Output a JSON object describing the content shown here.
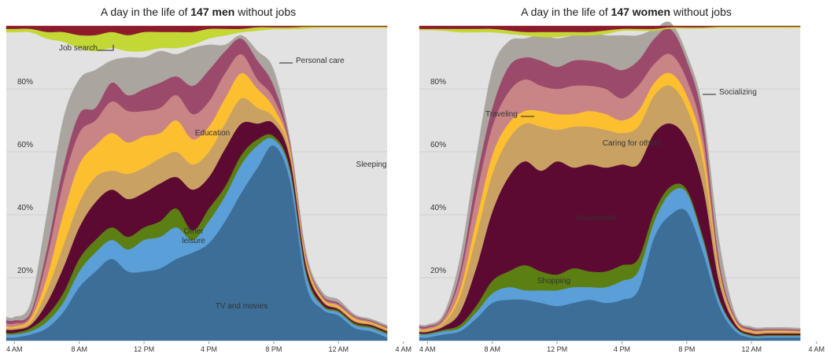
{
  "chart_data": [
    {
      "type": "area",
      "stacked": true,
      "title": {
        "pre": "A day in the life of ",
        "bold": "147 men",
        "post": " without jobs"
      },
      "x": [
        3.5,
        4,
        5,
        6,
        7,
        8,
        9,
        10,
        11,
        12,
        13,
        14,
        15,
        16,
        17,
        18,
        19,
        20,
        21,
        22,
        23,
        24,
        25,
        26,
        27
      ],
      "xlim": [
        3.5,
        28
      ],
      "xticks": [
        {
          "value": 4,
          "label": "4 AM"
        },
        {
          "value": 8,
          "label": "8 AM"
        },
        {
          "value": 12,
          "label": "12 PM"
        },
        {
          "value": 16,
          "label": "4 PM"
        },
        {
          "value": 20,
          "label": "8 PM"
        },
        {
          "value": 24,
          "label": "12 AM"
        },
        {
          "value": 28,
          "label": "4 AM"
        }
      ],
      "ylim": [
        0,
        100
      ],
      "yticks": [
        {
          "value": 20,
          "label": "20%"
        },
        {
          "value": 40,
          "label": "40%"
        },
        {
          "value": 60,
          "label": "60%"
        },
        {
          "value": 80,
          "label": "80%"
        }
      ],
      "grid": true,
      "background": "#e2e2e2",
      "annotations": [
        "Sleeping"
      ],
      "series": [
        {
          "name": "TV and movies",
          "color": "#3c6e98",
          "values": [
            1,
            1,
            2,
            4,
            9,
            17,
            22,
            26,
            22,
            22,
            23,
            26,
            28,
            31,
            38,
            47,
            55,
            62,
            51,
            18,
            10,
            8,
            4,
            3,
            1
          ]
        },
        {
          "name": "Other leisure",
          "color": "#5a9fd8",
          "values": [
            1,
            1,
            1,
            2,
            3,
            5,
            6,
            6,
            7,
            10,
            10,
            10,
            4,
            7,
            8,
            9,
            7,
            2,
            3,
            3,
            1,
            1,
            1,
            1,
            1
          ]
        },
        {
          "color": "#5b7f12",
          "values": [
            0.5,
            0.5,
            1,
            2,
            3,
            4,
            4,
            4,
            4,
            4,
            5,
            6,
            3,
            4,
            3,
            3,
            2,
            1,
            1,
            1,
            0.5,
            0.5,
            0.5,
            0.5,
            0.5
          ]
        },
        {
          "color": "#5c0a32",
          "values": [
            1,
            1,
            1,
            4,
            8,
            10,
            12,
            12,
            12,
            11,
            12,
            10,
            13,
            10,
            12,
            10,
            5,
            4,
            3,
            2,
            1,
            0.5,
            0.5,
            0.5,
            0.5
          ]
        },
        {
          "color": "#c9a263",
          "values": [
            0.5,
            0.5,
            1,
            4,
            7,
            8,
            8,
            6,
            8,
            8,
            8,
            8,
            8,
            8,
            8,
            8,
            5,
            2,
            2,
            1,
            0.5,
            0.5,
            0.5,
            0.5,
            0.5
          ]
        },
        {
          "name": "Education",
          "color": "#fcbf30",
          "values": [
            0.5,
            0.5,
            1,
            4,
            10,
            12,
            10,
            12,
            10,
            10,
            8,
            10,
            8,
            8,
            8,
            8,
            6,
            3,
            1,
            1,
            0.5,
            0.5,
            0.5,
            0.3,
            0.3
          ]
        },
        {
          "color": "#c98585",
          "values": [
            1,
            1,
            1,
            6,
            10,
            10,
            8,
            10,
            10,
            8,
            8,
            8,
            8,
            8,
            8,
            6,
            3,
            3,
            1,
            0.5,
            0.5,
            0.5,
            0.5,
            0.3,
            0.3
          ]
        },
        {
          "color": "#9c4a6c",
          "values": [
            1,
            1,
            1,
            3,
            5,
            6,
            4,
            6,
            5,
            7,
            8,
            6,
            9,
            10,
            7,
            5,
            6,
            4,
            1,
            0.5,
            0.5,
            0.5,
            0.3,
            0.3,
            0.3
          ]
        },
        {
          "name": "Personal care",
          "color": "#aaa59f",
          "values": [
            1,
            1,
            3,
            11,
            15,
            11,
            12,
            7,
            12,
            10,
            10,
            7,
            12,
            8,
            2,
            1,
            3,
            5,
            1,
            1,
            1,
            1,
            0.5,
            0.5,
            0.5
          ]
        },
        {
          "from": "top",
          "color": "#8c1c2c",
          "values": [
            1,
            1,
            1,
            2,
            2,
            3,
            3,
            2,
            3,
            2,
            2,
            2,
            2,
            1,
            1,
            1,
            0.5,
            0.5,
            0.5,
            0.3,
            0.3,
            0.3,
            0.3,
            0.3,
            0.3
          ]
        },
        {
          "from": "top",
          "name": "Job search",
          "color": "#c3d735",
          "values": [
            1,
            1,
            1,
            2,
            3,
            4,
            5,
            5,
            5,
            6,
            5,
            5,
            4,
            3,
            2,
            1,
            1,
            0.5,
            0.5,
            0.5,
            0.3,
            0.3,
            0.3,
            0.3,
            0.3
          ]
        }
      ]
    },
    {
      "type": "area",
      "stacked": true,
      "title": {
        "pre": "A day in the life of ",
        "bold": "147 women",
        "post": " without jobs"
      },
      "x": [
        3.5,
        4,
        5,
        6,
        7,
        8,
        9,
        10,
        11,
        12,
        13,
        14,
        15,
        16,
        17,
        18,
        19,
        20,
        21,
        22,
        23,
        24,
        25,
        26,
        27
      ],
      "xlim": [
        3.5,
        28
      ],
      "xticks": [
        {
          "value": 4,
          "label": "4 AM"
        },
        {
          "value": 8,
          "label": "8 AM"
        },
        {
          "value": 12,
          "label": "12 PM"
        },
        {
          "value": 16,
          "label": "4 PM"
        },
        {
          "value": 20,
          "label": "8 PM"
        },
        {
          "value": 24,
          "label": "12 AM"
        },
        {
          "value": 28,
          "label": "4 AM"
        }
      ],
      "ylim": [
        0,
        100
      ],
      "yticks": [
        {
          "value": 20,
          "label": "20%"
        },
        {
          "value": 40,
          "label": "40%"
        },
        {
          "value": 60,
          "label": "60%"
        },
        {
          "value": 80,
          "label": "80%"
        }
      ],
      "grid": true,
      "background": "#e2e2e2",
      "series": [
        {
          "color": "#3c6e98",
          "values": [
            1,
            1,
            2,
            3,
            7,
            12,
            13,
            13,
            12,
            11,
            12,
            13,
            12,
            13,
            16,
            33,
            40,
            41,
            28,
            11,
            3,
            1,
            1,
            1,
            1
          ]
        },
        {
          "color": "#5a9fd8",
          "values": [
            1,
            1,
            1,
            1,
            2,
            3,
            4,
            3,
            4,
            5,
            5,
            4,
            5,
            6,
            6,
            5,
            7,
            6,
            4,
            2,
            1,
            0.5,
            0.5,
            0.5,
            0.5
          ]
        },
        {
          "name": "Shopping",
          "color": "#5b7f12",
          "values": [
            0.3,
            0.3,
            0.5,
            1,
            2,
            4,
            5,
            8,
            6,
            5,
            6,
            5,
            5,
            5,
            4,
            3,
            2,
            1,
            1,
            0.5,
            0.3,
            0.3,
            0.3,
            0.3,
            0.3
          ]
        },
        {
          "name": "Housework",
          "color": "#5c0a32",
          "values": [
            0.5,
            0.5,
            1,
            4,
            12,
            22,
            30,
            33,
            32,
            36,
            32,
            34,
            33,
            32,
            30,
            25,
            20,
            16,
            16,
            5,
            1,
            0.5,
            0.5,
            0.5,
            0.5
          ]
        },
        {
          "name": "Caring for others",
          "color": "#c9a263",
          "values": [
            0.5,
            0.5,
            1,
            5,
            10,
            12,
            12,
            12,
            14,
            10,
            13,
            12,
            12,
            10,
            12,
            12,
            12,
            10,
            8,
            3,
            0.5,
            0.5,
            0.5,
            0.5,
            0.3
          ]
        },
        {
          "color": "#fcbf30",
          "values": [
            0.3,
            0.3,
            0.5,
            2,
            5,
            6,
            5,
            4,
            5,
            5,
            4,
            5,
            5,
            4,
            5,
            4,
            4,
            4,
            4,
            1,
            0.5,
            0.3,
            0.3,
            0.3,
            0.3
          ]
        },
        {
          "name": "Traveling",
          "color": "#c98585",
          "values": [
            0.5,
            0.5,
            1,
            4,
            8,
            9,
            10,
            10,
            8,
            8,
            9,
            8,
            8,
            7,
            8,
            6,
            6,
            5,
            4,
            1,
            0.5,
            0.3,
            0.3,
            0.3,
            0.3
          ]
        },
        {
          "name": "Socializing",
          "color": "#9c4a6c",
          "values": [
            0.5,
            0.5,
            0.5,
            2,
            5,
            6,
            8,
            7,
            8,
            7,
            8,
            8,
            8,
            9,
            8,
            8,
            8,
            6,
            5,
            2,
            0.5,
            0.5,
            0.3,
            0.3,
            0.3
          ]
        },
        {
          "color": "#aaa59f",
          "values": [
            0.5,
            0.5,
            1,
            4,
            7,
            12,
            8,
            6,
            8,
            9,
            8,
            9,
            9,
            11,
            8,
            3,
            2,
            2,
            3,
            6,
            1,
            0.5,
            0.5,
            0.5,
            0.5
          ]
        },
        {
          "from": "top",
          "color": "#8c1c2c",
          "values": [
            1,
            1,
            1,
            1,
            1,
            1,
            1.5,
            2,
            2,
            2,
            2,
            2,
            1.5,
            1,
            1,
            1,
            0.5,
            0.5,
            0.5,
            0.3,
            0.3,
            0.3,
            0.3,
            0.3,
            0.3
          ]
        },
        {
          "from": "top",
          "color": "#c3d735",
          "values": [
            0.3,
            0.3,
            0.5,
            1,
            1,
            1,
            1,
            1,
            1.5,
            1.5,
            1,
            1,
            1,
            0.5,
            0.5,
            0.5,
            0.3,
            0.3,
            0.3,
            0.3,
            0.3,
            0.3,
            0.3,
            0.3,
            0.3
          ]
        }
      ]
    }
  ]
}
